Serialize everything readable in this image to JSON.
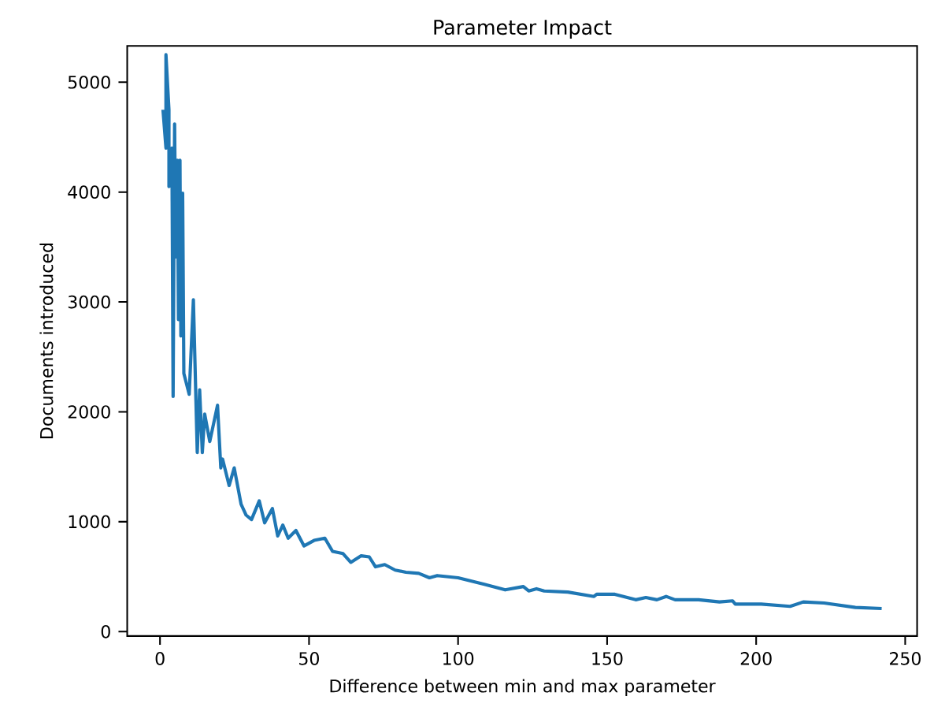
{
  "chart_data": {
    "type": "line",
    "title": "Parameter Impact",
    "xlabel": "Difference between min and max parameter",
    "ylabel": "Documents introduced",
    "xlim": [
      -11,
      254
    ],
    "ylim": [
      -40,
      5330
    ],
    "xticks": [
      0,
      50,
      100,
      150,
      200,
      250
    ],
    "yticks": [
      0,
      1000,
      2000,
      3000,
      4000,
      5000
    ],
    "grid": false,
    "marker": "none",
    "line_style": "solid",
    "series": [
      {
        "color": "#1f77b4",
        "x": [
          1,
          2,
          2,
          3,
          3,
          4,
          4.4,
          4.9,
          5.3,
          5.8,
          6.2,
          6.7,
          7,
          7.6,
          8,
          9.8,
          11.2,
          12.5,
          13.3,
          14.2,
          15,
          16.7,
          19.3,
          20.4,
          21,
          23.2,
          24.9,
          27.2,
          28.9,
          30.7,
          33.3,
          35.1,
          37.7,
          39.5,
          41.2,
          43,
          45.6,
          48.3,
          51.7,
          55.3,
          57.9,
          61.4,
          64,
          67.5,
          70.2,
          72.3,
          75.4,
          78.9,
          82.5,
          86.8,
          90.4,
          93,
          100,
          108.8,
          115.8,
          121.9,
          123.7,
          126.3,
          128.9,
          136.8,
          145.6,
          146.5,
          152.6,
          159.6,
          163,
          166.7,
          169.8,
          172.8,
          180.7,
          187.7,
          192.1,
          193,
          201.7,
          211.4,
          215.8,
          222.8,
          233.3,
          242.1
        ],
        "values": [
          4750,
          4400,
          5250,
          4750,
          4050,
          4400,
          2140,
          4620,
          3410,
          4290,
          2840,
          4290,
          2690,
          3990,
          2350,
          2160,
          3020,
          1630,
          2200,
          1630,
          1980,
          1730,
          2060,
          1490,
          1570,
          1330,
          1490,
          1160,
          1060,
          1020,
          1190,
          990,
          1120,
          870,
          970,
          850,
          920,
          780,
          830,
          850,
          730,
          710,
          630,
          690,
          680,
          590,
          610,
          560,
          540,
          530,
          490,
          510,
          490,
          430,
          380,
          410,
          370,
          390,
          370,
          360,
          320,
          340,
          340,
          290,
          310,
          290,
          320,
          290,
          290,
          270,
          280,
          250,
          250,
          230,
          270,
          260,
          220,
          210
        ]
      }
    ]
  }
}
